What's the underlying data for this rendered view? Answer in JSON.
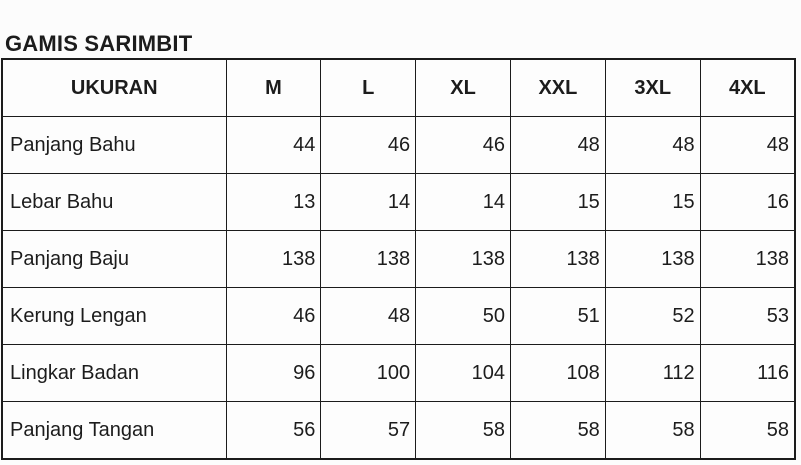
{
  "title": "GAMIS SARIMBIT",
  "table": {
    "columns": [
      "UKURAN",
      "M",
      "L",
      "XL",
      "XXL",
      "3XL",
      "4XL"
    ],
    "rows": [
      {
        "label": "Panjang Bahu",
        "values": [
          "44",
          "46",
          "46",
          "48",
          "48",
          "48"
        ]
      },
      {
        "label": "Lebar Bahu",
        "values": [
          "13",
          "14",
          "14",
          "15",
          "15",
          "16"
        ]
      },
      {
        "label": "Panjang Baju",
        "values": [
          "138",
          "138",
          "138",
          "138",
          "138",
          "138"
        ]
      },
      {
        "label": "Kerung Lengan",
        "values": [
          "46",
          "48",
          "50",
          "51",
          "52",
          "53"
        ]
      },
      {
        "label": "Lingkar Badan",
        "values": [
          "96",
          "100",
          "104",
          "108",
          "112",
          "116"
        ]
      },
      {
        "label": "Panjang Tangan",
        "values": [
          "56",
          "57",
          "58",
          "58",
          "58",
          "58"
        ]
      }
    ]
  },
  "colors": {
    "text": "#1c1c1c",
    "border": "#1c1c1c",
    "background": "#fcfcfc"
  }
}
